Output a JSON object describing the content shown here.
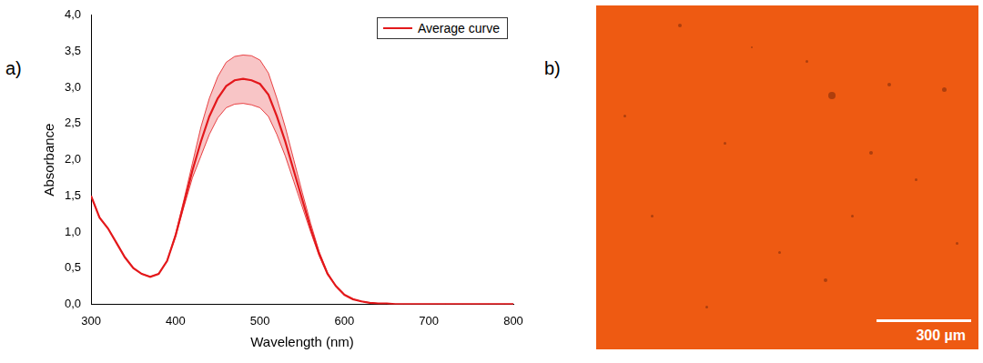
{
  "chart_data": {
    "type": "line",
    "panel_label": "a)",
    "x_label": "Wavelength (nm)",
    "y_label": "Absorbance",
    "x": [
      300,
      310,
      320,
      330,
      340,
      350,
      360,
      370,
      380,
      390,
      400,
      410,
      420,
      430,
      440,
      450,
      460,
      470,
      480,
      490,
      500,
      510,
      520,
      530,
      540,
      550,
      560,
      570,
      580,
      590,
      600,
      610,
      620,
      630,
      640,
      650,
      660,
      670,
      680,
      690,
      700,
      710,
      720,
      730,
      740,
      750,
      760,
      770,
      780,
      790,
      800
    ],
    "series": [
      {
        "name": "Average curve",
        "color": "#e3191c",
        "values": [
          1.5,
          1.2,
          1.05,
          0.85,
          0.65,
          0.5,
          0.42,
          0.38,
          0.42,
          0.6,
          0.95,
          1.4,
          1.85,
          2.25,
          2.6,
          2.85,
          3.02,
          3.1,
          3.12,
          3.1,
          3.05,
          2.9,
          2.6,
          2.25,
          1.85,
          1.45,
          1.05,
          0.7,
          0.42,
          0.25,
          0.13,
          0.07,
          0.04,
          0.02,
          0.01,
          0.01,
          0,
          0,
          0,
          0,
          0,
          0,
          0,
          0,
          0,
          0,
          0,
          0,
          0,
          0,
          0
        ],
        "lower": [
          1.5,
          1.2,
          1.05,
          0.85,
          0.65,
          0.5,
          0.42,
          0.38,
          0.42,
          0.6,
          0.93,
          1.35,
          1.75,
          2.05,
          2.35,
          2.58,
          2.72,
          2.77,
          2.78,
          2.76,
          2.72,
          2.6,
          2.35,
          2.05,
          1.7,
          1.35,
          1.0,
          0.67,
          0.41,
          0.25,
          0.13,
          0.07,
          0.04,
          0.02,
          0.01,
          0.01,
          0,
          0,
          0,
          0,
          0,
          0,
          0,
          0,
          0,
          0,
          0,
          0,
          0,
          0,
          0
        ],
        "upper": [
          1.5,
          1.2,
          1.05,
          0.85,
          0.65,
          0.5,
          0.42,
          0.38,
          0.42,
          0.6,
          0.97,
          1.45,
          1.95,
          2.45,
          2.85,
          3.15,
          3.35,
          3.43,
          3.45,
          3.44,
          3.38,
          3.2,
          2.85,
          2.45,
          2.0,
          1.55,
          1.12,
          0.73,
          0.44,
          0.25,
          0.13,
          0.07,
          0.04,
          0.02,
          0.01,
          0.01,
          0,
          0,
          0,
          0,
          0,
          0,
          0,
          0,
          0,
          0,
          0,
          0,
          0,
          0,
          0
        ]
      }
    ],
    "xlim": [
      300,
      800
    ],
    "xticks": [
      300,
      400,
      500,
      600,
      700,
      800
    ],
    "ylim": [
      0,
      4
    ],
    "yticks": [
      {
        "value": 0,
        "label": "0,0"
      },
      {
        "value": 0.5,
        "label": "0,5"
      },
      {
        "value": 1,
        "label": "1,0"
      },
      {
        "value": 1.5,
        "label": "1,5"
      },
      {
        "value": 2,
        "label": "2,0"
      },
      {
        "value": 2.5,
        "label": "2,5"
      },
      {
        "value": 3,
        "label": "3,0"
      },
      {
        "value": 3.5,
        "label": "3,5"
      },
      {
        "value": 4,
        "label": "4,0"
      }
    ],
    "grid": false,
    "legend": "upper right"
  },
  "image": {
    "panel_label": "b)",
    "scale_bar_label": "300 µm"
  }
}
